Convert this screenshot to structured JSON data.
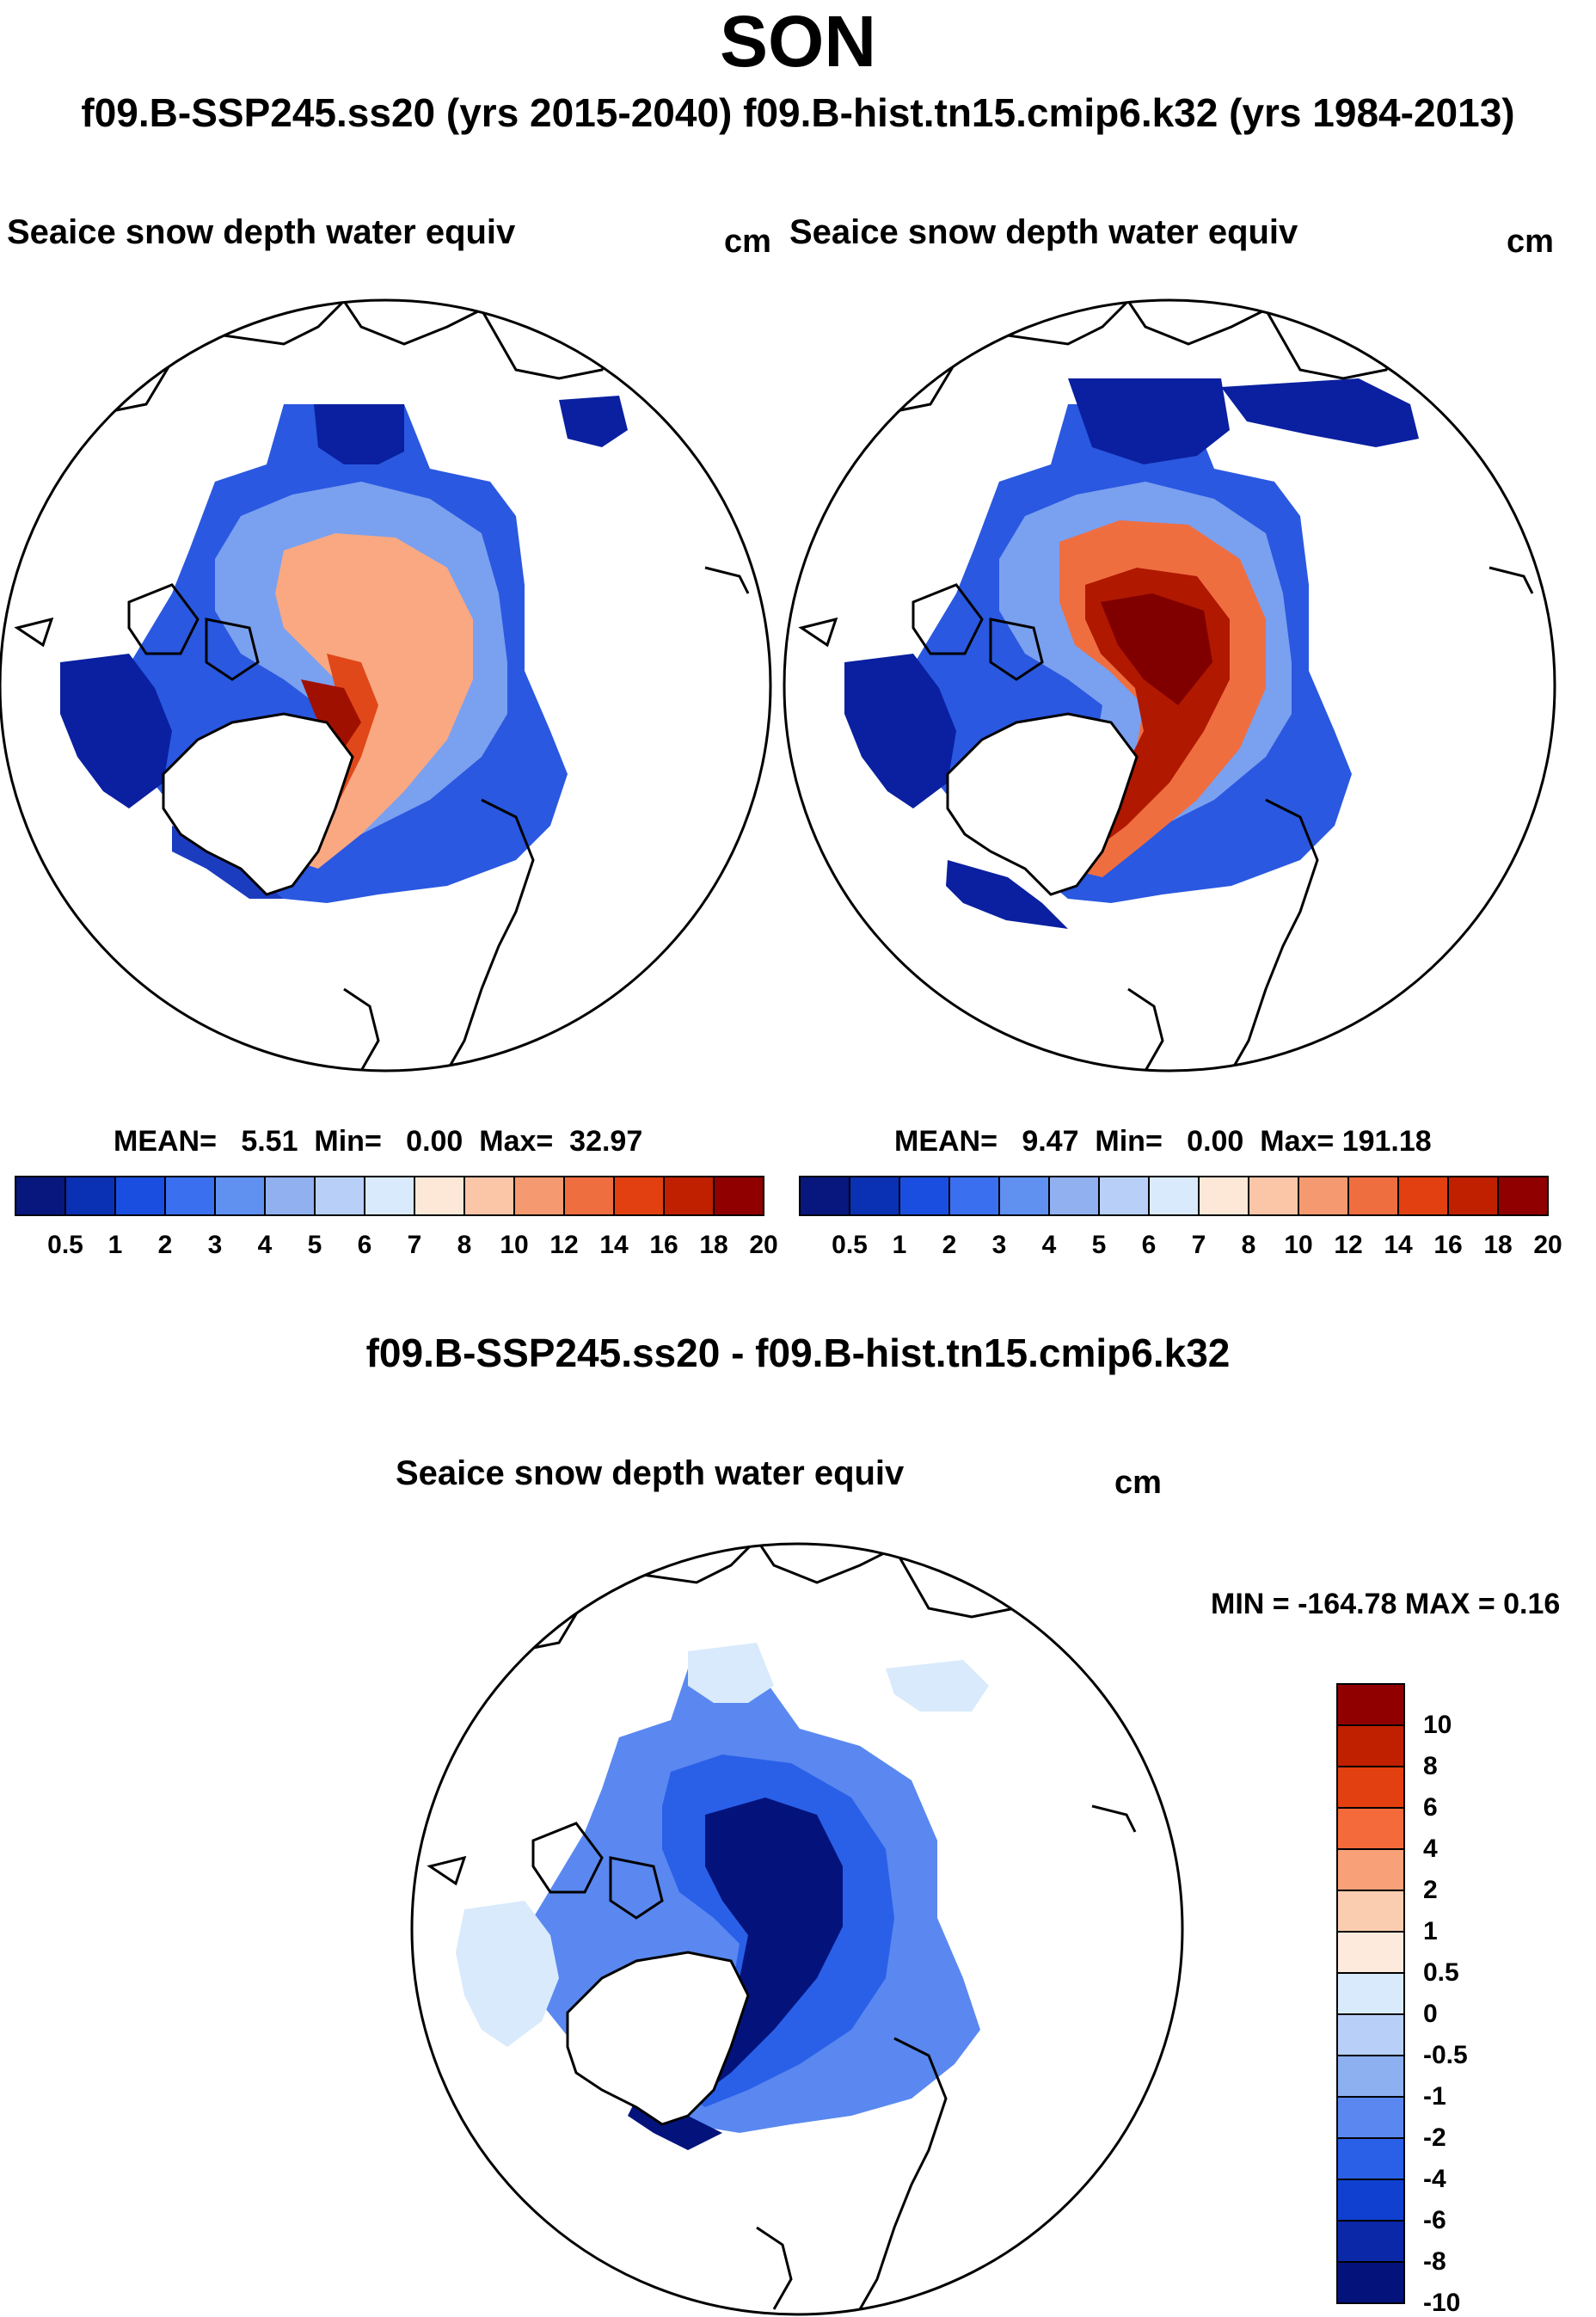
{
  "title": "SON",
  "run_titles": "f09.B-SSP245.ss20 (yrs 2015-2040)  f09.B-hist.tn15.cmip6.k32 (yrs 1984-2013)",
  "panels": [
    {
      "variable": "Seaice snow depth water equiv",
      "units": "cm",
      "mean_label": "MEAN=",
      "mean_value": "5.51",
      "min_label": "Min=",
      "min_value": "0.00",
      "max_label": "Max=",
      "max_value": "32.97"
    },
    {
      "variable": "Seaice snow depth water equiv",
      "units": "cm",
      "mean_label": "MEAN=",
      "mean_value": "9.47",
      "min_label": "Min=",
      "min_value": "0.00",
      "max_label": "Max=",
      "max_value": "191.18"
    }
  ],
  "colorbar_abs": {
    "colors": [
      "#08177e",
      "#0a30b4",
      "#1a4ee0",
      "#3a6ff0",
      "#6090f0",
      "#90b0f0",
      "#b8d0f8",
      "#d8eafc",
      "#fde8d8",
      "#fbc6a8",
      "#f59a70",
      "#ef6e40",
      "#e24010",
      "#c02000",
      "#900000"
    ],
    "labels": [
      "0.5",
      "1",
      "2",
      "3",
      "4",
      "5",
      "6",
      "7",
      "8",
      "10",
      "12",
      "14",
      "16",
      "18",
      "20"
    ]
  },
  "difference_title": "f09.B-SSP245.ss20 - f09.B-hist.tn15.cmip6.k32",
  "difference_panel": {
    "variable": "Seaice snow depth water equiv",
    "units": "cm",
    "minmax": "MIN = -164.78 MAX =   0.16"
  },
  "colorbar_diff": {
    "colors": [
      "#900000",
      "#c02000",
      "#e24010",
      "#f56a3a",
      "#f8a078",
      "#fbcdb0",
      "#fdeadc",
      "#d8eafc",
      "#b8d0f8",
      "#8cb0f0",
      "#5a88f0",
      "#2a60e8",
      "#1040d0",
      "#0a28a8",
      "#04137c"
    ],
    "labels": [
      "10",
      "8",
      "6",
      "4",
      "2",
      "1",
      "0.5",
      "0",
      "-0.5",
      "-1",
      "-2",
      "-4",
      "-6",
      "-8",
      "-10"
    ]
  }
}
